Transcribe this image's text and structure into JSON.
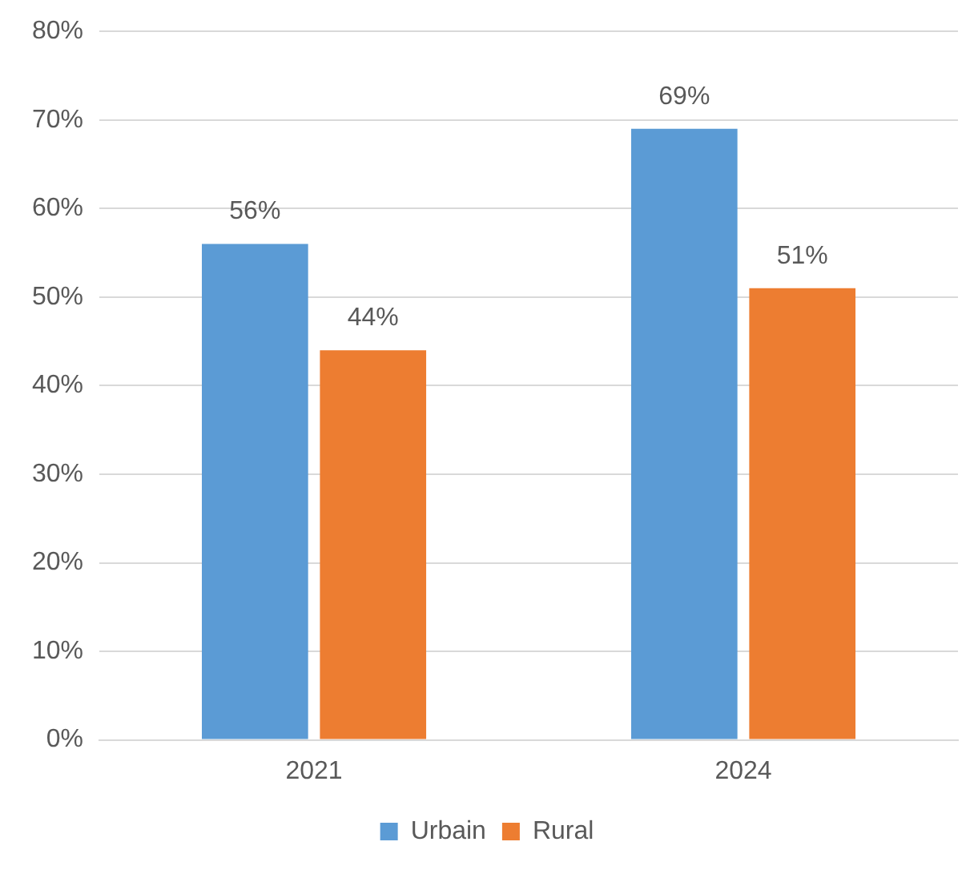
{
  "chart_data": {
    "type": "bar",
    "categories": [
      "2021",
      "2024"
    ],
    "series": [
      {
        "name": "Urbain",
        "color": "#5b9bd5",
        "values": [
          56,
          69
        ],
        "value_labels": [
          "56%",
          "69%"
        ]
      },
      {
        "name": "Rural",
        "color": "#ed7d31",
        "values": [
          44,
          51
        ],
        "value_labels": [
          "44%",
          "51%"
        ]
      }
    ],
    "ylim": [
      0,
      80
    ],
    "yticks": [
      {
        "value": 0,
        "label": "0%"
      },
      {
        "value": 10,
        "label": "10%"
      },
      {
        "value": 20,
        "label": "20%"
      },
      {
        "value": 30,
        "label": "30%"
      },
      {
        "value": 40,
        "label": "40%"
      },
      {
        "value": 50,
        "label": "50%"
      },
      {
        "value": 60,
        "label": "60%"
      },
      {
        "value": 70,
        "label": "70%"
      },
      {
        "value": 80,
        "label": "80%"
      }
    ],
    "grid": "y",
    "legend": "bottom"
  }
}
